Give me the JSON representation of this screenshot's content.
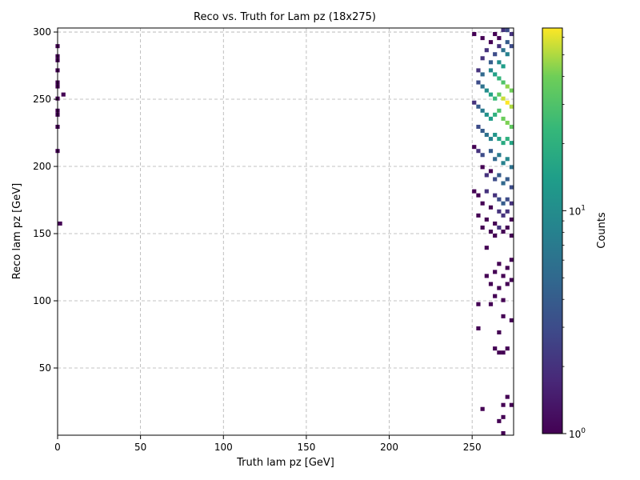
{
  "chart_data": {
    "type": "heatmap",
    "title": "Reco vs. Truth for Lam pz (18x275)",
    "xlabel": "Truth lam pz [GeV]",
    "ylabel": "Reco lam pz [GeV]",
    "xlim": [
      0,
      275
    ],
    "ylim": [
      0,
      303
    ],
    "xticks": [
      0,
      50,
      100,
      150,
      200,
      250
    ],
    "yticks": [
      50,
      100,
      150,
      200,
      250,
      300
    ],
    "grid": true,
    "bin_width": 2.5,
    "bin_height": 3.0,
    "colorbar": {
      "label": "Counts",
      "scale": "log",
      "colormap": "viridis",
      "range": [
        1,
        66
      ],
      "major_ticks": [
        {
          "value": 1,
          "label": "10^0"
        },
        {
          "value": 10,
          "label": "10^1"
        }
      ]
    },
    "cells": [
      [
        0.0,
        289.5,
        1
      ],
      [
        0.0,
        282.0,
        1
      ],
      [
        0.0,
        279.0,
        1
      ],
      [
        0.0,
        271.5,
        1
      ],
      [
        0.0,
        262.5,
        1
      ],
      [
        0.0,
        259.5,
        1
      ],
      [
        3.5,
        253.5,
        1
      ],
      [
        0.0,
        250.5,
        1
      ],
      [
        0.0,
        241.5,
        1
      ],
      [
        0.0,
        238.5,
        1
      ],
      [
        0.0,
        229.5,
        1
      ],
      [
        0.0,
        211.5,
        1
      ],
      [
        1.5,
        157.5,
        1
      ],
      [
        251.25,
        298.5,
        1
      ],
      [
        256.25,
        295.5,
        1
      ],
      [
        263.75,
        298.5,
        1
      ],
      [
        266.25,
        295.5,
        1
      ],
      [
        268.75,
        301.5,
        2
      ],
      [
        271.25,
        301.5,
        3
      ],
      [
        273.75,
        298.5,
        2
      ],
      [
        261.25,
        292.5,
        1
      ],
      [
        266.25,
        289.5,
        2
      ],
      [
        271.25,
        292.5,
        4
      ],
      [
        273.75,
        289.5,
        3
      ],
      [
        258.75,
        286.5,
        2
      ],
      [
        263.75,
        283.5,
        3
      ],
      [
        268.75,
        286.5,
        6
      ],
      [
        271.25,
        283.5,
        8
      ],
      [
        256.25,
        280.5,
        2
      ],
      [
        261.25,
        277.5,
        4
      ],
      [
        266.25,
        277.5,
        10
      ],
      [
        268.75,
        274.5,
        14
      ],
      [
        253.75,
        271.5,
        2
      ],
      [
        256.25,
        268.5,
        5
      ],
      [
        261.25,
        271.5,
        9
      ],
      [
        263.75,
        268.5,
        15
      ],
      [
        266.25,
        265.5,
        22
      ],
      [
        268.75,
        262.5,
        30
      ],
      [
        271.25,
        259.5,
        45
      ],
      [
        273.75,
        256.5,
        40
      ],
      [
        253.75,
        262.5,
        3
      ],
      [
        256.25,
        259.5,
        6
      ],
      [
        258.75,
        256.5,
        10
      ],
      [
        261.25,
        253.5,
        16
      ],
      [
        263.75,
        250.5,
        24
      ],
      [
        266.25,
        253.5,
        35
      ],
      [
        268.75,
        250.5,
        55
      ],
      [
        271.25,
        247.5,
        66
      ],
      [
        273.75,
        244.5,
        50
      ],
      [
        251.25,
        247.5,
        2
      ],
      [
        253.75,
        244.5,
        4
      ],
      [
        256.25,
        241.5,
        7
      ],
      [
        258.75,
        238.5,
        11
      ],
      [
        261.25,
        235.5,
        14
      ],
      [
        263.75,
        238.5,
        20
      ],
      [
        266.25,
        241.5,
        30
      ],
      [
        268.75,
        235.5,
        38
      ],
      [
        271.25,
        232.5,
        42
      ],
      [
        273.75,
        229.5,
        35
      ],
      [
        253.75,
        229.5,
        3
      ],
      [
        256.25,
        226.5,
        4
      ],
      [
        258.75,
        223.5,
        6
      ],
      [
        261.25,
        220.5,
        8
      ],
      [
        263.75,
        223.5,
        12
      ],
      [
        266.25,
        220.5,
        15
      ],
      [
        268.75,
        217.5,
        18
      ],
      [
        271.25,
        220.5,
        20
      ],
      [
        273.75,
        217.5,
        16
      ],
      [
        251.25,
        214.5,
        1
      ],
      [
        253.75,
        211.5,
        2
      ],
      [
        256.25,
        208.5,
        3
      ],
      [
        261.25,
        211.5,
        4
      ],
      [
        263.75,
        205.5,
        5
      ],
      [
        266.25,
        208.5,
        7
      ],
      [
        268.75,
        202.5,
        8
      ],
      [
        271.25,
        205.5,
        9
      ],
      [
        273.75,
        199.5,
        6
      ],
      [
        256.25,
        199.5,
        1
      ],
      [
        258.75,
        193.5,
        2
      ],
      [
        261.25,
        196.5,
        1
      ],
      [
        263.75,
        190.5,
        3
      ],
      [
        266.25,
        193.5,
        4
      ],
      [
        268.75,
        187.5,
        5
      ],
      [
        271.25,
        190.5,
        4
      ],
      [
        273.75,
        184.5,
        3
      ],
      [
        251.25,
        181.5,
        1
      ],
      [
        253.75,
        178.5,
        1
      ],
      [
        258.75,
        181.5,
        2
      ],
      [
        263.75,
        178.5,
        2
      ],
      [
        266.25,
        175.5,
        3
      ],
      [
        268.75,
        172.5,
        4
      ],
      [
        271.25,
        175.5,
        3
      ],
      [
        273.75,
        172.5,
        2
      ],
      [
        256.25,
        172.5,
        1
      ],
      [
        261.25,
        169.5,
        1
      ],
      [
        266.25,
        166.5,
        2
      ],
      [
        268.75,
        163.5,
        2
      ],
      [
        271.25,
        166.5,
        2
      ],
      [
        273.75,
        160.5,
        1
      ],
      [
        253.75,
        163.5,
        1
      ],
      [
        258.75,
        160.5,
        1
      ],
      [
        263.75,
        157.5,
        1
      ],
      [
        266.25,
        154.5,
        2
      ],
      [
        268.75,
        151.5,
        1
      ],
      [
        271.25,
        154.5,
        1
      ],
      [
        256.25,
        154.5,
        1
      ],
      [
        261.25,
        151.5,
        1
      ],
      [
        263.75,
        148.5,
        1
      ],
      [
        273.75,
        148.5,
        1
      ],
      [
        258.75,
        139.5,
        1
      ],
      [
        266.25,
        127.5,
        1
      ],
      [
        273.75,
        130.5,
        1
      ],
      [
        271.25,
        124.5,
        1
      ],
      [
        258.75,
        118.5,
        1
      ],
      [
        263.75,
        121.5,
        1
      ],
      [
        268.75,
        118.5,
        1
      ],
      [
        273.75,
        115.5,
        1
      ],
      [
        261.25,
        112.5,
        1
      ],
      [
        266.25,
        109.5,
        1
      ],
      [
        271.25,
        112.5,
        1
      ],
      [
        263.75,
        103.5,
        1
      ],
      [
        268.75,
        100.5,
        1
      ],
      [
        253.75,
        97.5,
        1
      ],
      [
        261.25,
        97.5,
        1
      ],
      [
        268.75,
        88.5,
        1
      ],
      [
        273.75,
        85.5,
        1
      ],
      [
        253.75,
        79.5,
        1
      ],
      [
        266.25,
        76.5,
        1
      ],
      [
        263.75,
        64.5,
        1
      ],
      [
        266.25,
        61.5,
        1
      ],
      [
        271.25,
        64.5,
        1
      ],
      [
        268.75,
        61.5,
        1
      ],
      [
        271.25,
        28.5,
        1
      ],
      [
        268.75,
        22.5,
        1
      ],
      [
        273.75,
        22.5,
        1
      ],
      [
        256.25,
        19.5,
        1
      ],
      [
        268.75,
        13.5,
        1
      ],
      [
        266.25,
        10.5,
        1
      ],
      [
        268.75,
        1.5,
        1
      ]
    ]
  }
}
